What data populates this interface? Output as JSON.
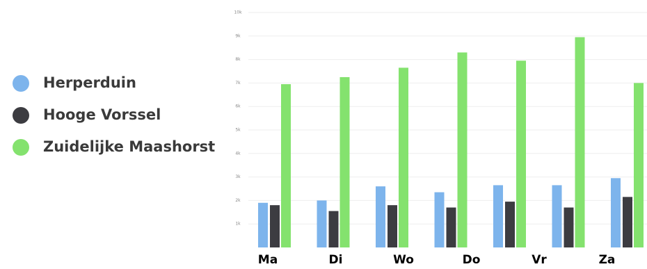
{
  "chart_data": {
    "type": "bar",
    "categories": [
      "Ma",
      "Di",
      "Wo",
      "Do",
      "Vr",
      "Za",
      null
    ],
    "series": [
      {
        "name": "Herperduin",
        "color": "#7db4ec",
        "values": [
          1900,
          2000,
          2600,
          2350,
          2650,
          2650,
          2950
        ]
      },
      {
        "name": "Hooge Vorssel",
        "color": "#3c3c41",
        "values": [
          1800,
          1550,
          1800,
          1700,
          1950,
          1700,
          2150
        ]
      },
      {
        "name": "Zuidelijke Maashorst",
        "color": "#84e26e",
        "values": [
          6950,
          7250,
          7650,
          8300,
          7950,
          8950,
          7000
        ]
      }
    ],
    "ylim": [
      0,
      10000
    ],
    "yticks": [
      {
        "value": 1000,
        "label": "1k"
      },
      {
        "value": 2000,
        "label": "2k"
      },
      {
        "value": 3000,
        "label": "3k"
      },
      {
        "value": 4000,
        "label": "4k"
      },
      {
        "value": 5000,
        "label": "5k"
      },
      {
        "value": 6000,
        "label": "6k"
      },
      {
        "value": 7000,
        "label": "7k"
      },
      {
        "value": 8000,
        "label": "8k"
      },
      {
        "value": 9000,
        "label": "9k"
      },
      {
        "value": 10000,
        "label": "10k"
      }
    ],
    "grid": true,
    "legend": "left"
  }
}
